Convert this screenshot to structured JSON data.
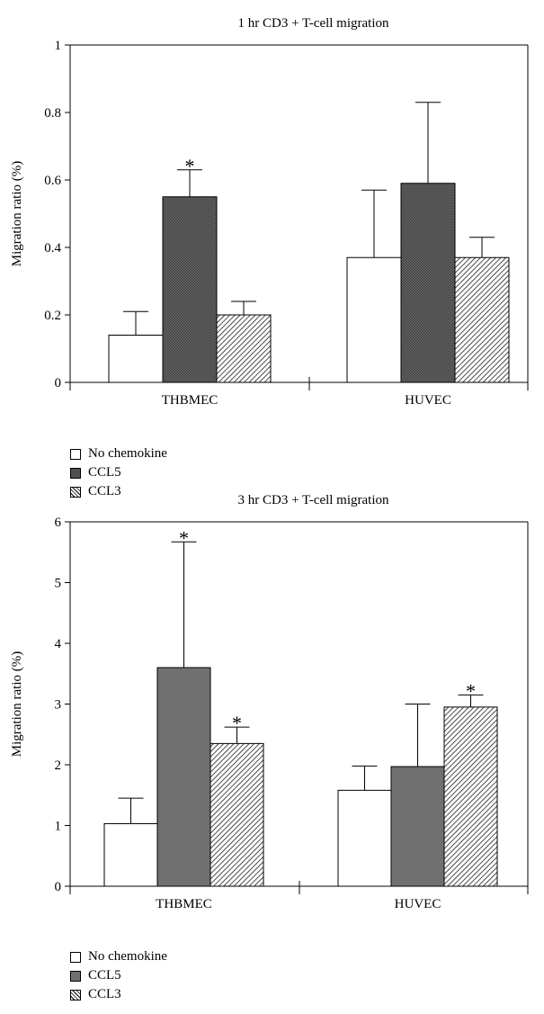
{
  "colors": {
    "no_chemokine": "#ffffff",
    "ccl5_top": "#555555",
    "ccl5_bottom": "#6e6e6e",
    "ccl3": "hatch",
    "ink": "#000000"
  },
  "legend": {
    "items": [
      {
        "label": "No chemokine",
        "swatch": "white"
      },
      {
        "label": "CCL5",
        "swatch": "dark"
      },
      {
        "label": "CCL3",
        "swatch": "hatch"
      }
    ]
  },
  "chart_data": [
    {
      "type": "bar",
      "title": "1 hr CD3 + T-cell migration",
      "ylabel": "Migration ratio (%)",
      "xlabel": "",
      "ylim": [
        0,
        1
      ],
      "yticks": [
        0,
        0.2,
        0.4,
        0.6,
        0.8,
        1
      ],
      "ytick_labels": [
        "0",
        "0.2",
        "0.4",
        "0.6",
        "0.8",
        "1"
      ],
      "categories": [
        "THBMEC",
        "HUVEC"
      ],
      "series": [
        {
          "name": "No chemokine",
          "values": [
            0.14,
            0.37
          ],
          "errors": [
            0.07,
            0.2
          ],
          "significant": [
            false,
            false
          ]
        },
        {
          "name": "CCL5",
          "values": [
            0.55,
            0.59
          ],
          "errors": [
            0.08,
            0.24
          ],
          "significant": [
            true,
            false
          ]
        },
        {
          "name": "CCL3",
          "values": [
            0.2,
            0.37
          ],
          "errors": [
            0.04,
            0.06
          ],
          "significant": [
            false,
            false
          ]
        }
      ],
      "significance_marker": "*",
      "legend_position": "bottom-left"
    },
    {
      "type": "bar",
      "title": "3 hr CD3 + T-cell migration",
      "ylabel": "Migration ratio (%)",
      "xlabel": "",
      "ylim": [
        0,
        6
      ],
      "yticks": [
        0,
        1,
        2,
        3,
        4,
        5,
        6
      ],
      "ytick_labels": [
        "0",
        "1",
        "2",
        "3",
        "4",
        "5",
        "6"
      ],
      "categories": [
        "THBMEC",
        "HUVEC"
      ],
      "series": [
        {
          "name": "No chemokine",
          "values": [
            1.03,
            1.58
          ],
          "errors": [
            0.42,
            0.4
          ],
          "significant": [
            false,
            false
          ]
        },
        {
          "name": "CCL5",
          "values": [
            3.6,
            1.97
          ],
          "errors": [
            2.07,
            1.03
          ],
          "significant": [
            true,
            false
          ]
        },
        {
          "name": "CCL3",
          "values": [
            2.35,
            2.95
          ],
          "errors": [
            0.27,
            0.2
          ],
          "significant": [
            true,
            true
          ]
        }
      ],
      "significance_marker": "*",
      "legend_position": "bottom-left"
    }
  ]
}
